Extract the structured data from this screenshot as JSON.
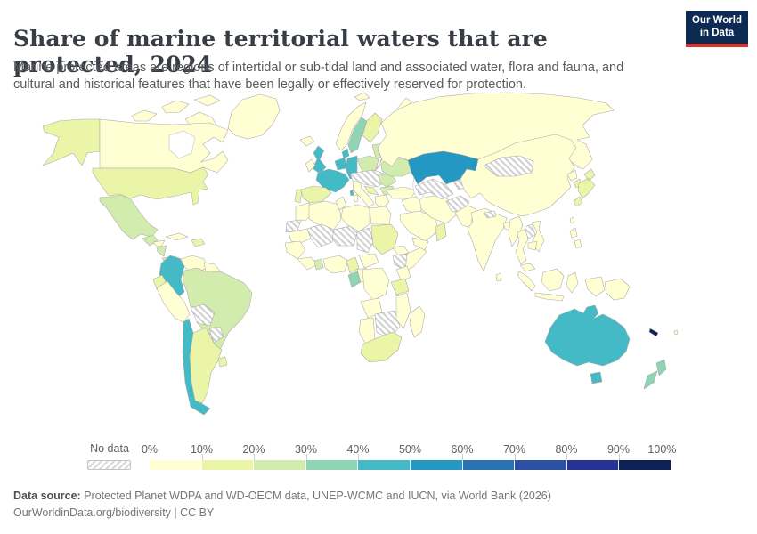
{
  "header": {
    "title": "Share of marine territorial waters that are protected, 2024",
    "logo_line1": "Our World",
    "logo_line2": "in Data"
  },
  "subtitle": "Marine protected areas are regions of intertidal or sub-tidal land and associated water, flora and fauna, and cultural and historical features that have been legally or effectively reserved for protection.",
  "legend": {
    "no_data_label": "No data",
    "ticks": [
      "0%",
      "10%",
      "20%",
      "30%",
      "40%",
      "50%",
      "60%",
      "70%",
      "80%",
      "90%",
      "100%"
    ]
  },
  "footer": {
    "source_label": "Data source:",
    "source_text": " Protected Planet WDPA and WD-OECM data, UNEP-WCMC and IUCN, via World Bank (2026)",
    "link_text": "OurWorldinData.org/biodiversity",
    "separator": " | ",
    "license": "CC BY"
  },
  "colors": {
    "palette": [
      "#ffffd3",
      "#eaf5a8",
      "#d2ecae",
      "#8ed4b5",
      "#44bac6",
      "#2398c2",
      "#2a73b3",
      "#2c51a4",
      "#253494",
      "#0d2157"
    ],
    "border": "#a9a9a9",
    "logo_bg": "#0d2a52",
    "logo_red": "#d8352e"
  },
  "chart_data": {
    "type": "heatmap",
    "subtype": "choropleth-world-map",
    "title": "Share of marine territorial waters that are protected, 2024",
    "unit": "%",
    "bins": [
      "0-10%",
      "10-20%",
      "20-30%",
      "30-40%",
      "40-50%",
      "50-60%",
      "60-70%",
      "70-80%",
      "80-90%",
      "90-100%"
    ],
    "legend_position": "bottom",
    "entities": [
      {
        "id": "canada",
        "name": "Canada",
        "bin": 0,
        "range": "0-10%"
      },
      {
        "id": "canadian-arctic",
        "name": "Canada (Arctic islands)",
        "bin": 0,
        "range": "0-10%"
      },
      {
        "id": "greenland",
        "name": "Greenland",
        "bin": 0,
        "range": "0-10%"
      },
      {
        "id": "iceland",
        "name": "Iceland",
        "bin": 0,
        "range": "0-10%"
      },
      {
        "id": "alaska",
        "name": "United States (Alaska)",
        "bin": 1,
        "range": "10-20%"
      },
      {
        "id": "united-states",
        "name": "United States",
        "bin": 1,
        "range": "10-20%"
      },
      {
        "id": "mexico",
        "name": "Mexico",
        "bin": 2,
        "range": "20-30%"
      },
      {
        "id": "guatemala",
        "name": "Guatemala",
        "bin": 2,
        "range": "20-30%"
      },
      {
        "id": "honduras",
        "name": "Honduras",
        "bin": 0,
        "range": "0-10%"
      },
      {
        "id": "nicaragua",
        "name": "Nicaragua",
        "bin": 2,
        "range": "20-30%"
      },
      {
        "id": "costa-rica-panama",
        "name": "Costa Rica & Panama",
        "bin": 2,
        "range": "20-30%"
      },
      {
        "id": "cuba",
        "name": "Cuba",
        "bin": 0,
        "range": "0-10%"
      },
      {
        "id": "hispaniola",
        "name": "Haiti & Dominican Republic",
        "bin": 1,
        "range": "10-20%"
      },
      {
        "id": "colombia",
        "name": "Colombia",
        "bin": 4,
        "range": "40-50%"
      },
      {
        "id": "venezuela",
        "name": "Venezuela",
        "bin": 0,
        "range": "0-10%"
      },
      {
        "id": "guyana-suriname",
        "name": "Guyana & Suriname",
        "bin": 0,
        "range": "0-10%"
      },
      {
        "id": "ecuador",
        "name": "Ecuador",
        "bin": 1,
        "range": "10-20%"
      },
      {
        "id": "peru",
        "name": "Peru",
        "bin": 0,
        "range": "0-10%"
      },
      {
        "id": "brazil",
        "name": "Brazil",
        "bin": 2,
        "range": "20-30%"
      },
      {
        "id": "chile",
        "name": "Chile",
        "bin": 4,
        "range": "40-50%"
      },
      {
        "id": "argentina",
        "name": "Argentina",
        "bin": 1,
        "range": "10-20%"
      },
      {
        "id": "uruguay",
        "name": "Uruguay",
        "bin": 1,
        "range": "10-20%"
      },
      {
        "id": "united-kingdom",
        "name": "United Kingdom",
        "bin": 4,
        "range": "40-50%"
      },
      {
        "id": "ireland",
        "name": "Ireland",
        "bin": 0,
        "range": "0-10%"
      },
      {
        "id": "norway",
        "name": "Norway",
        "bin": 0,
        "range": "0-10%"
      },
      {
        "id": "sweden",
        "name": "Sweden",
        "bin": 3,
        "range": "30-40%"
      },
      {
        "id": "finland",
        "name": "Finland",
        "bin": 1,
        "range": "10-20%"
      },
      {
        "id": "denmark",
        "name": "Denmark",
        "bin": 4,
        "range": "40-50%"
      },
      {
        "id": "netherlands-belgium",
        "name": "Netherlands & Belgium",
        "bin": 4,
        "range": "40-50%"
      },
      {
        "id": "germany",
        "name": "Germany",
        "bin": 4,
        "range": "40-50%"
      },
      {
        "id": "france",
        "name": "France",
        "bin": 4,
        "range": "40-50%"
      },
      {
        "id": "corsica",
        "name": "France (Corsica)",
        "bin": 4,
        "range": "40-50%"
      },
      {
        "id": "spain",
        "name": "Spain",
        "bin": 1,
        "range": "10-20%"
      },
      {
        "id": "portugal",
        "name": "Portugal",
        "bin": 1,
        "range": "10-20%"
      },
      {
        "id": "italy",
        "name": "Italy",
        "bin": 0,
        "range": "0-10%"
      },
      {
        "id": "sicily",
        "name": "Italy (Sicily)",
        "bin": 0,
        "range": "0-10%"
      },
      {
        "id": "sardinia",
        "name": "Italy (Sardinia)",
        "bin": 0,
        "range": "0-10%"
      },
      {
        "id": "poland",
        "name": "Poland",
        "bin": 2,
        "range": "20-30%"
      },
      {
        "id": "baltics",
        "name": "Baltic states",
        "bin": 2,
        "range": "20-30%"
      },
      {
        "id": "ukraine",
        "name": "Ukraine",
        "bin": 2,
        "range": "20-30%"
      },
      {
        "id": "romania",
        "name": "Romania",
        "bin": 2,
        "range": "20-30%"
      },
      {
        "id": "bulgaria",
        "name": "Bulgaria",
        "bin": 2,
        "range": "20-30%"
      },
      {
        "id": "croatia",
        "name": "Croatia",
        "bin": 1,
        "range": "10-20%"
      },
      {
        "id": "greece",
        "name": "Greece",
        "bin": 0,
        "range": "0-10%"
      },
      {
        "id": "turkey",
        "name": "Turkey",
        "bin": 0,
        "range": "0-10%"
      },
      {
        "id": "russia",
        "name": "Russia",
        "bin": 0,
        "range": "0-10%"
      },
      {
        "id": "svalbard",
        "name": "Norway (Svalbard)",
        "bin": 0,
        "range": "0-10%"
      },
      {
        "id": "novaya-zemlya",
        "name": "Russia (Novaya Zemlya)",
        "bin": 0,
        "range": "0-10%"
      },
      {
        "id": "kazakhstan",
        "name": "Kazakhstan",
        "bin": 5,
        "range": "50-60%"
      },
      {
        "id": "pakistan",
        "name": "Pakistan",
        "bin": 0,
        "range": "0-10%"
      },
      {
        "id": "india",
        "name": "India",
        "bin": 0,
        "range": "0-10%"
      },
      {
        "id": "sri-lanka",
        "name": "Sri Lanka",
        "bin": 0,
        "range": "0-10%"
      },
      {
        "id": "bangladesh",
        "name": "Bangladesh",
        "bin": 0,
        "range": "0-10%"
      },
      {
        "id": "myanmar",
        "name": "Myanmar",
        "bin": 0,
        "range": "0-10%"
      },
      {
        "id": "thailand",
        "name": "Thailand",
        "bin": 0,
        "range": "0-10%"
      },
      {
        "id": "vietnam",
        "name": "Vietnam",
        "bin": 0,
        "range": "0-10%"
      },
      {
        "id": "cambodia",
        "name": "Cambodia",
        "bin": 0,
        "range": "0-10%"
      },
      {
        "id": "malaysia",
        "name": "Malaysia",
        "bin": 0,
        "range": "0-10%"
      },
      {
        "id": "china",
        "name": "China",
        "bin": 0,
        "range": "0-10%"
      },
      {
        "id": "taiwan",
        "name": "Taiwan",
        "bin": 0,
        "range": "0-10%"
      },
      {
        "id": "north-korea",
        "name": "North Korea",
        "bin": 0,
        "range": "0-10%"
      },
      {
        "id": "south-korea",
        "name": "South Korea",
        "bin": 1,
        "range": "10-20%"
      },
      {
        "id": "japan",
        "name": "Japan",
        "bin": 1,
        "range": "10-20%"
      },
      {
        "id": "philippines",
        "name": "Philippines",
        "bin": 0,
        "range": "0-10%"
      },
      {
        "id": "indonesia",
        "name": "Indonesia",
        "bin": 0,
        "range": "0-10%"
      },
      {
        "id": "papua-new-guinea",
        "name": "Papua New Guinea",
        "bin": 0,
        "range": "0-10%"
      },
      {
        "id": "fiji",
        "name": "Fiji",
        "bin": 0,
        "range": "0-10%"
      },
      {
        "id": "australia",
        "name": "Australia",
        "bin": 4,
        "range": "40-50%"
      },
      {
        "id": "tasmania",
        "name": "Australia (Tasmania)",
        "bin": 4,
        "range": "40-50%"
      },
      {
        "id": "new-zealand",
        "name": "New Zealand",
        "bin": 3,
        "range": "30-40%"
      },
      {
        "id": "new-caledonia",
        "name": "New Caledonia",
        "bin": 9,
        "range": "90-100%"
      },
      {
        "id": "iraq-levant",
        "name": "Iraq & Levant",
        "bin": 0,
        "range": "0-10%"
      },
      {
        "id": "saudi-arabia",
        "name": "Saudi Arabia",
        "bin": 0,
        "range": "0-10%"
      },
      {
        "id": "yemen",
        "name": "Yemen",
        "bin": 0,
        "range": "0-10%"
      },
      {
        "id": "oman",
        "name": "Oman",
        "bin": 1,
        "range": "10-20%"
      },
      {
        "id": "iran",
        "name": "Iran",
        "bin": 0,
        "range": "0-10%"
      },
      {
        "id": "morocco",
        "name": "Morocco",
        "bin": 0,
        "range": "0-10%"
      },
      {
        "id": "algeria",
        "name": "Algeria",
        "bin": 0,
        "range": "0-10%"
      },
      {
        "id": "tunisia",
        "name": "Tunisia",
        "bin": 0,
        "range": "0-10%"
      },
      {
        "id": "libya",
        "name": "Libya",
        "bin": 0,
        "range": "0-10%"
      },
      {
        "id": "egypt",
        "name": "Egypt",
        "bin": 0,
        "range": "0-10%"
      },
      {
        "id": "mauritania",
        "name": "Mauritania",
        "bin": 0,
        "range": "0-10%"
      },
      {
        "id": "senegal-guinea",
        "name": "Senegal & Guinea",
        "bin": 0,
        "range": "0-10%"
      },
      {
        "id": "sierra-liberia-ivory",
        "name": "Sierra Leone, Liberia & Ivory Coast",
        "bin": 0,
        "range": "0-10%"
      },
      {
        "id": "ghana",
        "name": "Ghana",
        "bin": 2,
        "range": "20-30%"
      },
      {
        "id": "nigeria",
        "name": "Nigeria",
        "bin": 0,
        "range": "0-10%"
      },
      {
        "id": "cameroon",
        "name": "Cameroon",
        "bin": 1,
        "range": "10-20%"
      },
      {
        "id": "central-african",
        "name": "Central African Republic",
        "bin": 0,
        "range": "0-10%"
      },
      {
        "id": "gabon",
        "name": "Gabon",
        "bin": 3,
        "range": "30-40%"
      },
      {
        "id": "congo",
        "name": "Congo",
        "bin": 0,
        "range": "0-10%"
      },
      {
        "id": "dr-congo",
        "name": "Democratic Republic of Congo",
        "bin": 0,
        "range": "0-10%"
      },
      {
        "id": "sudan",
        "name": "Sudan",
        "bin": 1,
        "range": "10-20%"
      },
      {
        "id": "eritrea-djibouti",
        "name": "Eritrea & Djibouti",
        "bin": 0,
        "range": "0-10%"
      },
      {
        "id": "somalia",
        "name": "Somalia",
        "bin": 0,
        "range": "0-10%"
      },
      {
        "id": "kenya",
        "name": "Kenya",
        "bin": 0,
        "range": "0-10%"
      },
      {
        "id": "tanzania",
        "name": "Tanzania",
        "bin": 1,
        "range": "10-20%"
      },
      {
        "id": "angola",
        "name": "Angola",
        "bin": 0,
        "range": "0-10%"
      },
      {
        "id": "namibia",
        "name": "Namibia",
        "bin": 0,
        "range": "0-10%"
      },
      {
        "id": "mozambique",
        "name": "Mozambique",
        "bin": 0,
        "range": "0-10%"
      },
      {
        "id": "south-africa",
        "name": "South Africa",
        "bin": 1,
        "range": "10-20%"
      },
      {
        "id": "madagascar",
        "name": "Madagascar",
        "bin": 0,
        "range": "0-10%"
      }
    ],
    "no_data_entities": [
      {
        "id": "bolivia",
        "name": "Bolivia"
      },
      {
        "id": "paraguay",
        "name": "Paraguay"
      },
      {
        "id": "french-guiana",
        "name": "French Guiana"
      },
      {
        "id": "belarus",
        "name": "Belarus"
      },
      {
        "id": "central-europe",
        "name": "Austria, Switzerland, Czechia, Slovakia, Hungary & Serbia"
      },
      {
        "id": "western-sahara",
        "name": "Western Sahara"
      },
      {
        "id": "mali",
        "name": "Mali"
      },
      {
        "id": "niger",
        "name": "Niger"
      },
      {
        "id": "chad",
        "name": "Chad"
      },
      {
        "id": "ethiopia",
        "name": "Ethiopia"
      },
      {
        "id": "zambia-zimbabwe-botswana",
        "name": "Zambia, Zimbabwe & Botswana"
      },
      {
        "id": "mongolia",
        "name": "Mongolia"
      },
      {
        "id": "uzbek-turkmen",
        "name": "Uzbekistan & Turkmenistan"
      },
      {
        "id": "kyrgyz-tajik",
        "name": "Kyrgyzstan & Tajikistan"
      },
      {
        "id": "afghanistan",
        "name": "Afghanistan"
      },
      {
        "id": "nepal",
        "name": "Nepal"
      },
      {
        "id": "laos",
        "name": "Laos"
      }
    ]
  }
}
